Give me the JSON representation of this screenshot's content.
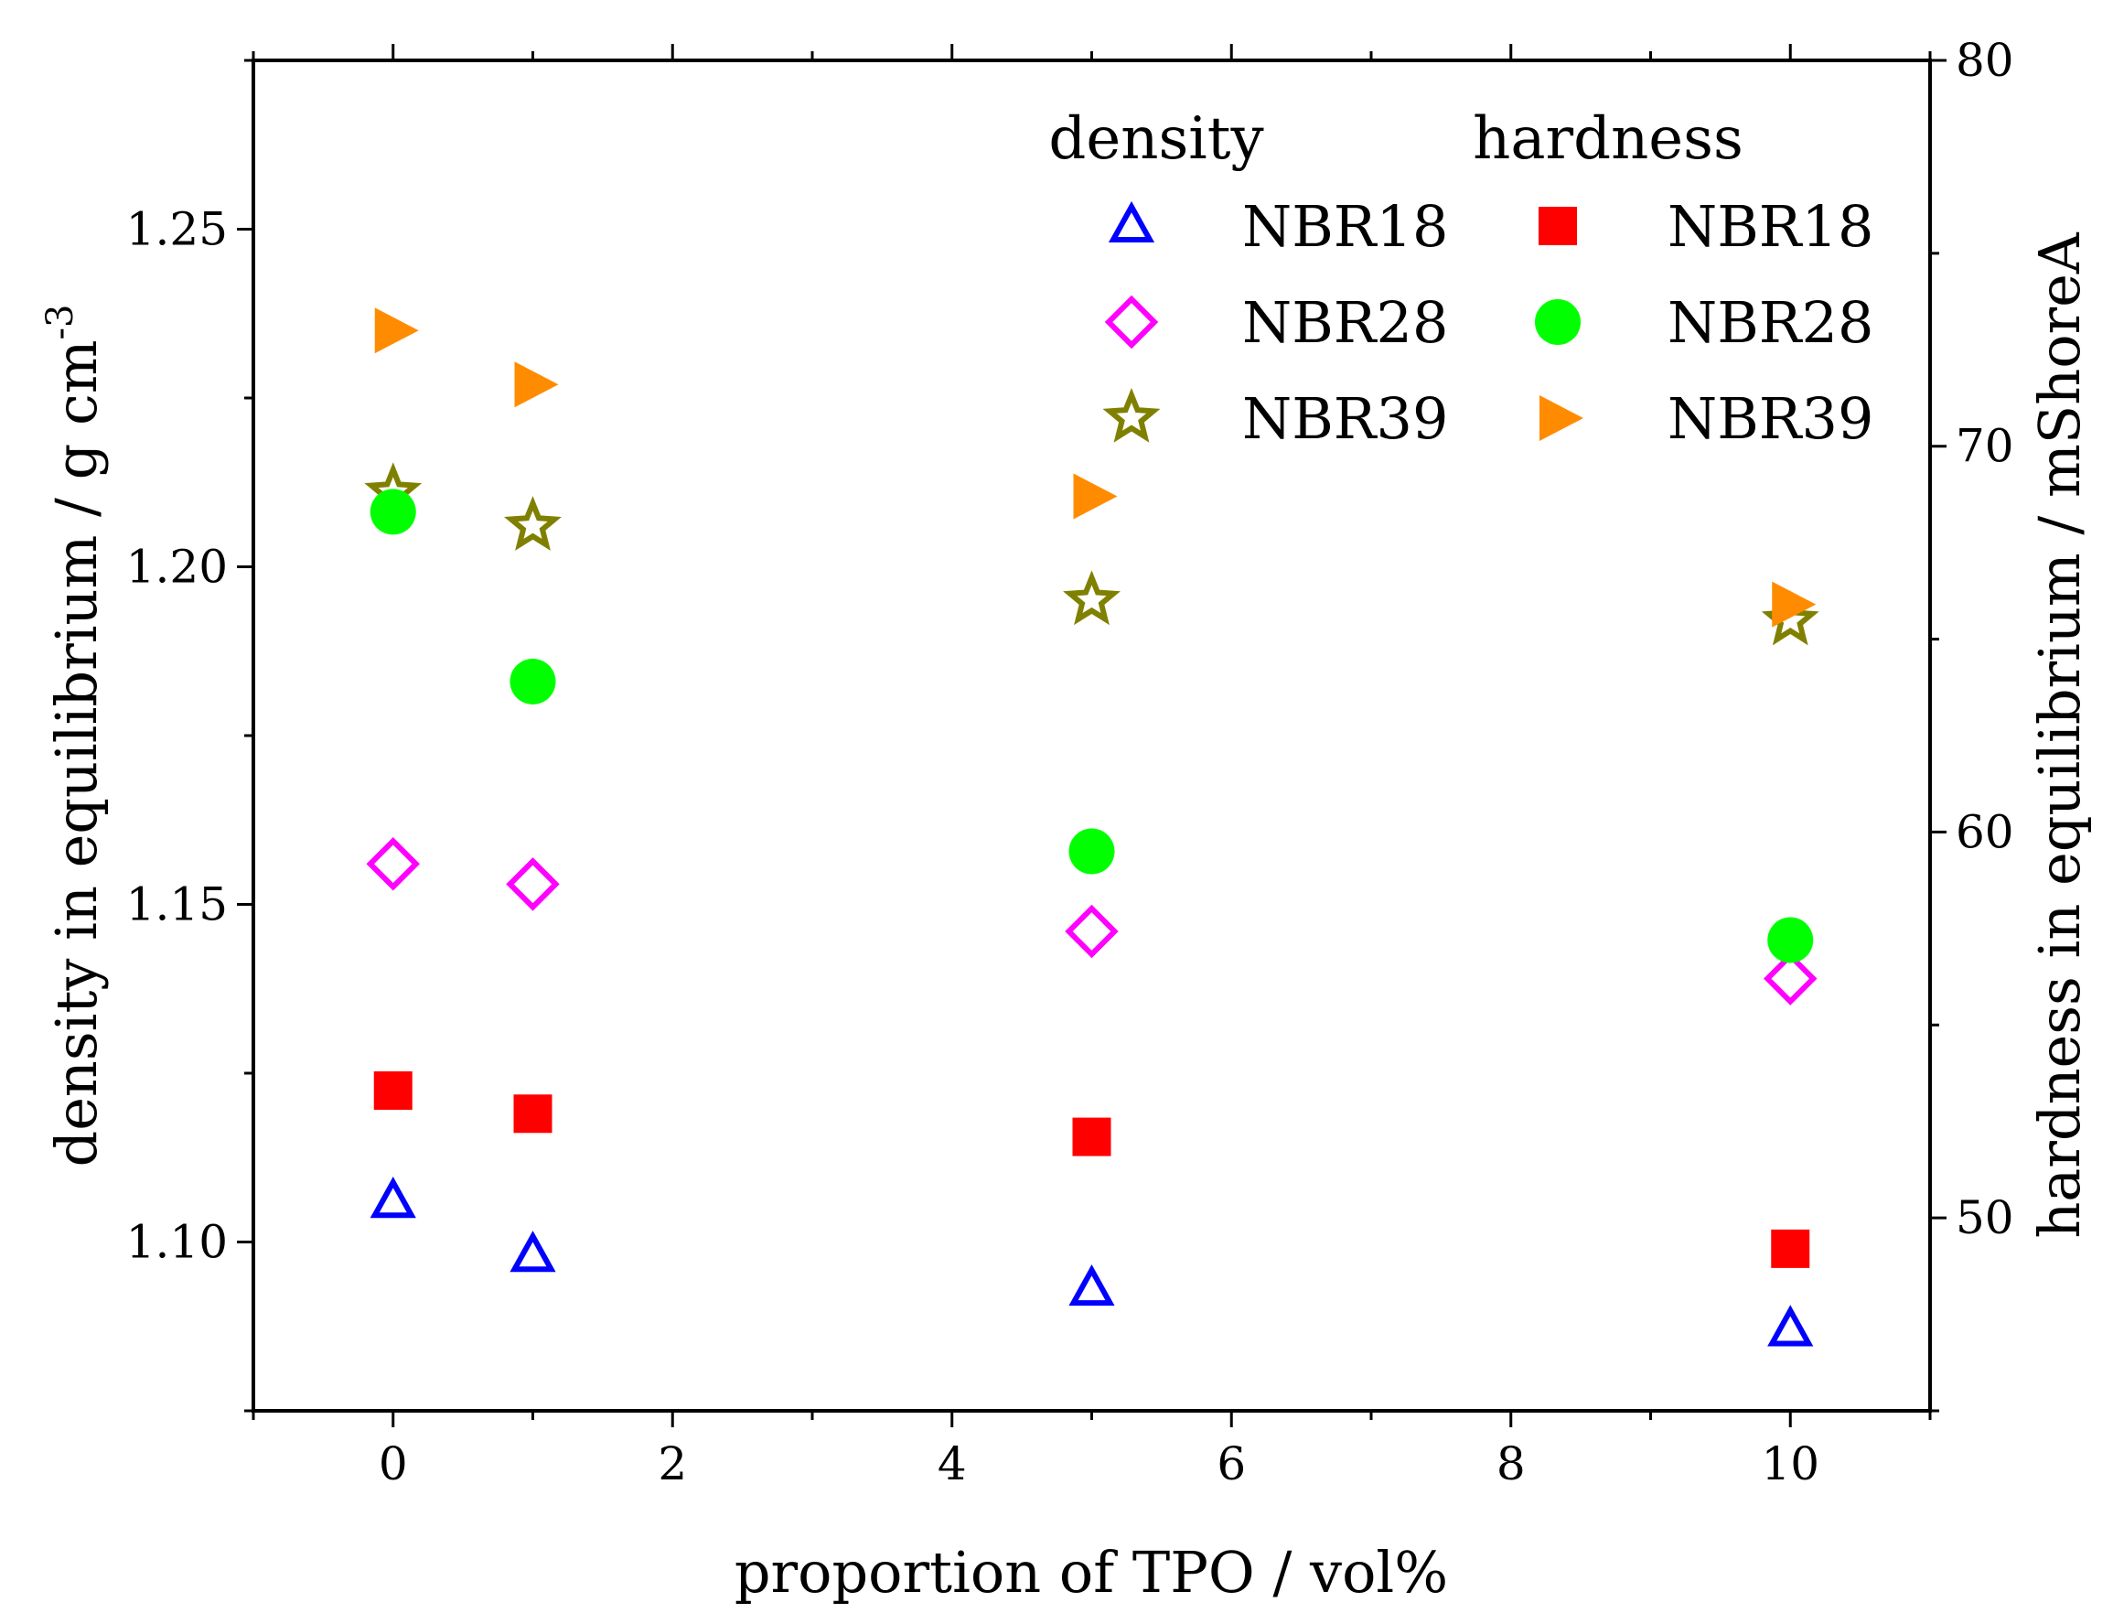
{
  "chart_data": {
    "type": "scatter",
    "xlabel": "proportion of TPO / vol%",
    "ylabel_left": "density in equilibrium / g cm",
    "ylabel_left_superscript": "-3",
    "ylabel_right": "hardness in equilibrium / mShoreA",
    "xlim": [
      -1,
      11
    ],
    "ylim_left": [
      1.075,
      1.275
    ],
    "ylim_right": [
      45,
      80
    ],
    "x_ticks": [
      0,
      2,
      4,
      6,
      8,
      10
    ],
    "x_tick_labels": [
      "0",
      "2",
      "4",
      "6",
      "8",
      "10"
    ],
    "y_left_ticks": [
      1.1,
      1.15,
      1.2,
      1.25
    ],
    "y_left_tick_labels": [
      "1.10",
      "1.15",
      "1.20",
      "1.25"
    ],
    "y_right_ticks": [
      50,
      60,
      70,
      80
    ],
    "y_right_tick_labels": [
      "50",
      "60",
      "70",
      "80"
    ],
    "legend": {
      "placement": "top-right",
      "density_header": "density",
      "hardness_header": "hardness"
    },
    "series": [
      {
        "name": "NBR18",
        "group": "density",
        "axis": "left",
        "marker": "triangle-open",
        "color": "#0000ff",
        "x": [
          0,
          1,
          5,
          10
        ],
        "values": [
          1.106,
          1.098,
          1.093,
          1.087
        ]
      },
      {
        "name": "NBR28",
        "group": "density",
        "axis": "left",
        "marker": "diamond-open",
        "color": "#ff00ff",
        "x": [
          0,
          1,
          5,
          10
        ],
        "values": [
          1.156,
          1.153,
          1.146,
          1.139
        ]
      },
      {
        "name": "NBR39",
        "group": "density",
        "axis": "left",
        "marker": "star-open",
        "color": "#808000",
        "x": [
          0,
          1,
          5,
          10
        ],
        "values": [
          1.211,
          1.206,
          1.195,
          1.192
        ]
      },
      {
        "name": "NBR18",
        "group": "hardness",
        "axis": "right",
        "marker": "square",
        "color": "#ff0000",
        "x": [
          0,
          1,
          5,
          10
        ],
        "values": [
          53.3,
          52.7,
          52.1,
          49.2
        ]
      },
      {
        "name": "NBR28",
        "group": "hardness",
        "axis": "right",
        "marker": "circle",
        "color": "#00ff00",
        "x": [
          0,
          1,
          5,
          10
        ],
        "values": [
          68.3,
          63.9,
          59.5,
          57.2
        ]
      },
      {
        "name": "NBR39",
        "group": "hardness",
        "axis": "right",
        "marker": "triangle-right",
        "color": "#ff8c00",
        "x": [
          0,
          1,
          5,
          10
        ],
        "values": [
          73.0,
          71.6,
          68.7,
          65.9
        ]
      }
    ]
  }
}
